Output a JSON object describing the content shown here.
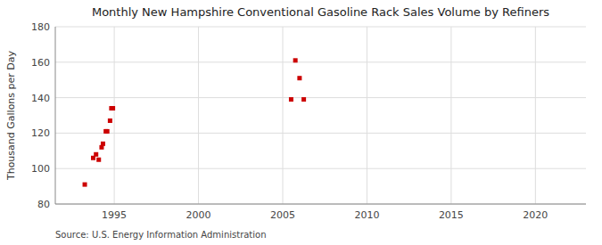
{
  "chart_data": {
    "type": "scatter",
    "title": "Monthly New Hampshire Conventional Gasoline Rack Sales Volume by Refiners",
    "ylabel": "Thousand Gallons per Day",
    "source": "Source: U.S. Energy Information Administration",
    "x": [
      1993.25,
      1993.75,
      1993.92,
      1994.08,
      1994.25,
      1994.33,
      1994.5,
      1994.58,
      1994.75,
      1994.83,
      1994.92,
      2005.5,
      2005.75,
      2006.0,
      2006.25
    ],
    "values": [
      91,
      106,
      108,
      105,
      112,
      114,
      121,
      121,
      127,
      134,
      134,
      139,
      161,
      151,
      139
    ],
    "color": "#cc0000",
    "marker": "square",
    "xlim": [
      1991.5,
      2023
    ],
    "ylim": [
      80,
      180
    ],
    "xticks": [
      1995,
      2000,
      2005,
      2010,
      2015,
      2020
    ],
    "yticks": [
      80,
      100,
      120,
      140,
      160,
      180
    ],
    "grid": true
  }
}
